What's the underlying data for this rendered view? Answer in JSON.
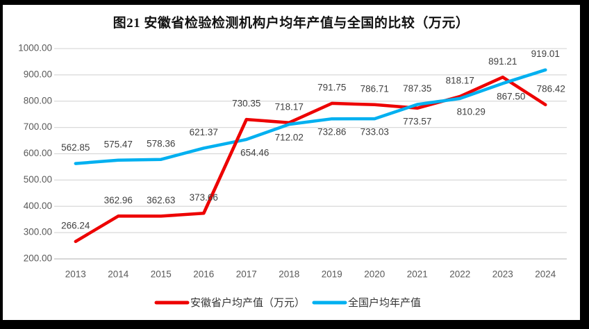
{
  "title": "图21 安徽省检验检测机构户均年产值与全国的比较（万元）",
  "chart_data": {
    "type": "line",
    "title": "图21 安徽省检验检测机构户均年产值与全国的比较（万元）",
    "categories": [
      "2013",
      "2014",
      "2015",
      "2016",
      "2017",
      "2018",
      "2019",
      "2020",
      "2021",
      "2022",
      "2023",
      "2024"
    ],
    "series": [
      {
        "name": "安徽省户均产值（万元）",
        "color": "#ed0000",
        "values": [
          266.24,
          362.96,
          362.63,
          373.66,
          730.35,
          718.17,
          791.75,
          786.71,
          773.57,
          818.17,
          891.21,
          786.42
        ],
        "label_positions": [
          "above",
          "above",
          "above",
          "above",
          "above",
          "above",
          "above",
          "above",
          "below",
          "above",
          "above",
          "above"
        ],
        "label_dx": [
          0,
          0,
          0,
          0,
          0,
          0,
          0,
          0,
          0,
          0,
          0,
          8
        ]
      },
      {
        "name": "全国户均年产值",
        "color": "#00b0f0",
        "values": [
          562.85,
          575.47,
          578.36,
          621.37,
          654.46,
          712.02,
          732.86,
          733.03,
          787.35,
          810.29,
          867.5,
          919.01
        ],
        "label_positions": [
          "above",
          "above",
          "above",
          "above",
          "below",
          "below",
          "below",
          "below",
          "above",
          "below",
          "below",
          "above"
        ],
        "label_dx": [
          0,
          0,
          0,
          0,
          12,
          0,
          0,
          0,
          0,
          16,
          12,
          0
        ]
      }
    ],
    "ylim": [
      200,
      1000
    ],
    "ytick_labels": [
      "1000.00",
      "900.00",
      "800.00",
      "700.00",
      "600.00",
      "500.00",
      "400.00",
      "300.00",
      "200.00"
    ],
    "grid": true,
    "legend_position": "bottom",
    "xlabel": "",
    "ylabel": ""
  },
  "colors": {
    "anhui_line": "#ed0000",
    "national_line": "#00b0f0",
    "data_label": "#404040",
    "axis_label": "#595959",
    "gridline": "#d9d9d9",
    "axis_line": "#bfbfbf",
    "legend_text": "#333333",
    "frame": "#000000"
  }
}
